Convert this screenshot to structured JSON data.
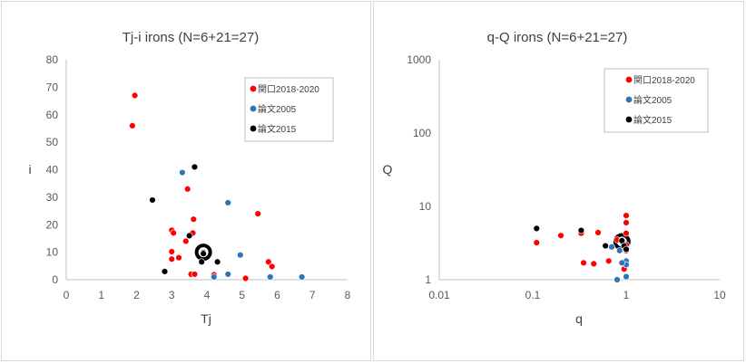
{
  "chart_data": [
    {
      "type": "scatter",
      "title": "Tj-i  irons (N=6+21=27)",
      "xlabel": "Tj",
      "ylabel": "i",
      "xlim": [
        0,
        8
      ],
      "ylim": [
        0,
        80
      ],
      "x_ticks": [
        "0",
        "1",
        "2",
        "3",
        "4",
        "5",
        "6",
        "7",
        "8"
      ],
      "y_ticks": [
        "0",
        "10",
        "20",
        "30",
        "40",
        "50",
        "60",
        "70",
        "80"
      ],
      "grid": false,
      "legend_position": "top-right",
      "series": [
        {
          "name": "関口2018-2020",
          "color": "#ff0000",
          "points": [
            [
              1.95,
              67
            ],
            [
              1.88,
              56
            ],
            [
              3.45,
              33
            ],
            [
              5.45,
              24
            ],
            [
              3.62,
              22
            ],
            [
              3.0,
              18
            ],
            [
              3.05,
              17
            ],
            [
              3.6,
              17
            ],
            [
              3.4,
              14
            ],
            [
              3.0,
              10.2
            ],
            [
              3.2,
              8
            ],
            [
              3.0,
              7.5
            ],
            [
              5.75,
              6.5
            ],
            [
              5.85,
              4.8
            ],
            [
              3.55,
              2
            ],
            [
              3.65,
              2
            ],
            [
              4.2,
              1.8
            ],
            [
              5.1,
              0.5
            ]
          ]
        },
        {
          "name": "論文2005",
          "color": "#2e75b6",
          "points": [
            [
              3.3,
              39
            ],
            [
              4.6,
              28
            ],
            [
              4.95,
              9
            ],
            [
              4.6,
              2
            ],
            [
              5.8,
              1
            ],
            [
              6.7,
              1
            ],
            [
              4.2,
              1
            ]
          ]
        },
        {
          "name": "論文2015",
          "color": "#000000",
          "points": [
            [
              3.65,
              41
            ],
            [
              2.45,
              29
            ],
            [
              3.5,
              16
            ],
            [
              3.9,
              9.5
            ],
            [
              4.3,
              6.5
            ],
            [
              3.85,
              6.5
            ],
            [
              2.8,
              3
            ]
          ]
        }
      ],
      "highlight": {
        "x": 3.9,
        "y": 10
      }
    },
    {
      "type": "scatter",
      "title": "q-Q  irons (N=6+21=27)",
      "xlabel": "q",
      "ylabel": "Q",
      "x_scale": "log",
      "y_scale": "log",
      "xlim": [
        0.01,
        10
      ],
      "ylim": [
        1,
        1000
      ],
      "x_ticks": [
        "0.01",
        "0.1",
        "1",
        "10"
      ],
      "y_ticks": [
        "1",
        "10",
        "100",
        "1000"
      ],
      "grid": false,
      "legend_position": "top-right",
      "series": [
        {
          "name": "関口2018-2020",
          "color": "#ff0000",
          "points": [
            [
              0.11,
              3.2
            ],
            [
              0.2,
              4
            ],
            [
              0.33,
              4.3
            ],
            [
              0.5,
              4.4
            ],
            [
              0.65,
              1.8
            ],
            [
              0.35,
              1.7
            ],
            [
              0.45,
              1.65
            ],
            [
              0.8,
              3.5
            ],
            [
              0.9,
              3.5
            ],
            [
              1.0,
              7.5
            ],
            [
              1.0,
              6.0
            ],
            [
              1.0,
              4.3
            ],
            [
              1.0,
              3.0
            ],
            [
              1.0,
              2.5
            ],
            [
              0.95,
              1.4
            ]
          ]
        },
        {
          "name": "論文2005",
          "color": "#2e75b6",
          "points": [
            [
              0.7,
              2.8
            ],
            [
              0.85,
              2.5
            ],
            [
              1.0,
              1.8
            ],
            [
              1.0,
              1.6
            ],
            [
              1.0,
              1.1
            ],
            [
              0.9,
              1.7
            ],
            [
              0.8,
              1.0
            ]
          ]
        },
        {
          "name": "論文2015",
          "color": "#000000",
          "points": [
            [
              0.11,
              5
            ],
            [
              0.33,
              4.7
            ],
            [
              0.6,
              2.9
            ],
            [
              0.9,
              3.4
            ],
            [
              0.95,
              2.9
            ],
            [
              1.0,
              2.6
            ]
          ]
        }
      ],
      "highlight": {
        "x": 0.9,
        "y": 3.3
      }
    }
  ]
}
